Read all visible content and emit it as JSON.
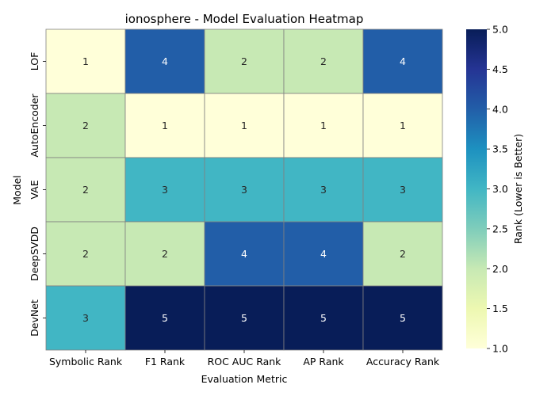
{
  "chart_data": {
    "type": "heatmap",
    "title": "ionosphere - Model Evaluation Heatmap",
    "xlabel": "Evaluation Metric",
    "ylabel": "Model",
    "columns": [
      "Symbolic Rank",
      "F1 Rank",
      "ROC AUC Rank",
      "AP Rank",
      "Accuracy Rank"
    ],
    "rows": [
      "LOF",
      "AutoEncoder",
      "VAE",
      "DeepSVDD",
      "DevNet"
    ],
    "values": [
      [
        1,
        4,
        2,
        2,
        4
      ],
      [
        2,
        1,
        1,
        1,
        1
      ],
      [
        2,
        3,
        3,
        3,
        3
      ],
      [
        2,
        2,
        4,
        4,
        2
      ],
      [
        3,
        5,
        5,
        5,
        5
      ]
    ],
    "colorbar": {
      "label": "Rank (Lower is Better)",
      "range": [
        1,
        5
      ],
      "ticks": [
        "1.0",
        "1.5",
        "2.0",
        "2.5",
        "3.0",
        "3.5",
        "4.0",
        "4.5",
        "5.0"
      ],
      "colormap": "YlGnBu"
    }
  }
}
